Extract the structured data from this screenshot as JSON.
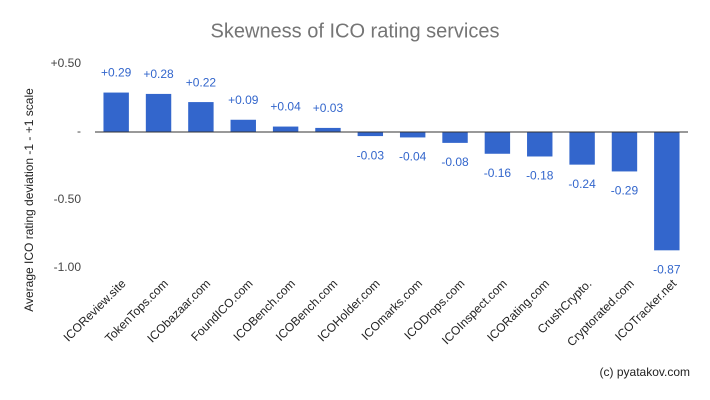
{
  "chart_data": {
    "type": "bar",
    "title": "Skewness of ICO rating services",
    "y_label": "Average ICO rating deviation -1 - +1 scale",
    "annotation": "(c) pyatakov.com",
    "categories": [
      "ICOReview.site",
      "TokenTops.com",
      "ICObazaar.com",
      "FoundICO.com",
      "ICOBench.com",
      "ICOBench.com",
      "ICOHolder.com",
      "ICOmarks.com",
      "ICODrops.com",
      "ICOInspect.com",
      "ICORating.com",
      "CrushCrypto.",
      "Cryptorated.com",
      "ICOTracker.net"
    ],
    "values": [
      0.29,
      0.28,
      0.22,
      0.09,
      0.04,
      0.03,
      -0.03,
      -0.04,
      -0.08,
      -0.16,
      -0.18,
      -0.24,
      -0.29,
      -0.87
    ],
    "value_labels": [
      "+0.29",
      "+0.28",
      "+0.22",
      "+0.09",
      "+0.04",
      "+0.03",
      "-0.03",
      "-0.04",
      "-0.08",
      "-0.16",
      "-0.18",
      "-0.24",
      "-0.29",
      "-0.87"
    ],
    "color": "#3366cc",
    "ylim": [
      -1,
      0.5
    ],
    "yticks": [
      {
        "value": 0.5,
        "label": "+0.50"
      },
      {
        "value": 0,
        "label": "-"
      },
      {
        "value": -0.5,
        "label": "-0.50"
      },
      {
        "value": -1,
        "label": "-1.00"
      }
    ],
    "grid": false
  }
}
